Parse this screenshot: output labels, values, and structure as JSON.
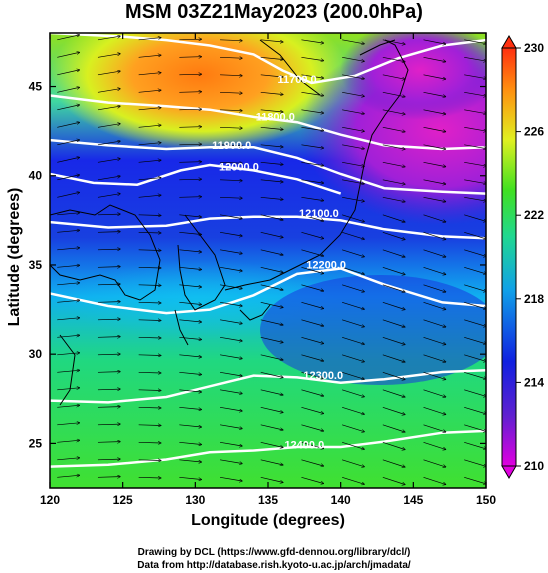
{
  "title": "MSM 03Z21May2023 (200.0hPa)",
  "xlabel": "Longitude (degrees)",
  "ylabel": "Latitude  (degrees)",
  "credits": [
    "Drawing by DCL (https://www.gfd-dennou.org/library/dcl/)",
    "Data from http://database.rish.kyoto-u.ac.jp/arch/jmadata/"
  ],
  "map": {
    "type": "contour-map",
    "lon_range": [
      120,
      150
    ],
    "lat_range": [
      22.5,
      48
    ],
    "x_ticks": [
      "120",
      "125",
      "130",
      "135",
      "140",
      "145",
      "150"
    ],
    "y_ticks": [
      "25",
      "30",
      "35",
      "40",
      "45"
    ],
    "shaded_field_range": [
      210,
      230
    ],
    "colorbar_ticks": [
      "210",
      "214",
      "218",
      "222",
      "226",
      "230"
    ],
    "colormap": [
      "#e000e0",
      "#6020d0",
      "#1020e0",
      "#10a0e8",
      "#20d890",
      "#40e020",
      "#e0f020",
      "#ff9010",
      "#ff3010"
    ],
    "contours": [
      {
        "label": "11700.0",
        "lon": 137.0,
        "lat": 45.2
      },
      {
        "label": "11800.0",
        "lon": 135.5,
        "lat": 43.1
      },
      {
        "label": "11900.0",
        "lon": 132.5,
        "lat": 41.5
      },
      {
        "label": "12000.0",
        "lon": 133.0,
        "lat": 40.3
      },
      {
        "label": "12100.0",
        "lon": 138.5,
        "lat": 37.7
      },
      {
        "label": "12200.0",
        "lon": 139.0,
        "lat": 34.8
      },
      {
        "label": "12300.0",
        "lon": 138.8,
        "lat": 28.6
      },
      {
        "label": "12400.0",
        "lon": 137.5,
        "lat": 24.7
      }
    ],
    "contour_lines": [
      [
        [
          120,
          48.0
        ],
        [
          125,
          47.8
        ],
        [
          128,
          47.6
        ],
        [
          131,
          47.3
        ],
        [
          134,
          46.8
        ],
        [
          136,
          45.9
        ],
        [
          138,
          45.2
        ],
        [
          141,
          45.6
        ],
        [
          144,
          46.6
        ],
        [
          147,
          47.3
        ],
        [
          150,
          47.6
        ]
      ],
      [
        [
          120,
          44.5
        ],
        [
          124,
          44.1
        ],
        [
          128,
          43.9
        ],
        [
          131,
          43.7
        ],
        [
          134,
          43.3
        ],
        [
          137,
          43.0
        ],
        [
          140,
          42.3
        ],
        [
          143,
          41.7
        ],
        [
          147,
          41.5
        ],
        [
          150,
          41.6
        ]
      ],
      [
        [
          120,
          42.0
        ],
        [
          124,
          41.7
        ],
        [
          128,
          41.5
        ],
        [
          131,
          41.6
        ],
        [
          134,
          41.6
        ],
        [
          137,
          41.0
        ],
        [
          140,
          40.1
        ],
        [
          143,
          39.3
        ],
        [
          147,
          39.1
        ],
        [
          150,
          39.0
        ]
      ],
      [
        [
          120,
          40.1
        ],
        [
          123,
          39.6
        ],
        [
          126,
          39.5
        ],
        [
          129,
          40.3
        ],
        [
          131,
          40.6
        ],
        [
          134,
          40.3
        ],
        [
          137,
          39.8
        ],
        [
          140,
          39.0
        ]
      ],
      [
        [
          120,
          37.4
        ],
        [
          124,
          37.1
        ],
        [
          128,
          37.2
        ],
        [
          131,
          37.6
        ],
        [
          134,
          37.7
        ],
        [
          137,
          37.7
        ],
        [
          140,
          37.5
        ],
        [
          143,
          37.0
        ],
        [
          147,
          36.6
        ],
        [
          150,
          36.5
        ]
      ],
      [
        [
          120,
          33.4
        ],
        [
          124,
          32.7
        ],
        [
          128,
          32.3
        ],
        [
          131,
          32.5
        ],
        [
          134,
          33.3
        ],
        [
          137,
          34.5
        ],
        [
          140,
          34.8
        ],
        [
          143,
          33.9
        ],
        [
          147,
          32.9
        ],
        [
          150,
          32.7
        ]
      ],
      [
        [
          120,
          27.4
        ],
        [
          124,
          27.3
        ],
        [
          128,
          27.6
        ],
        [
          131,
          28.2
        ],
        [
          134,
          28.8
        ],
        [
          137,
          28.7
        ],
        [
          140,
          28.4
        ],
        [
          143,
          28.6
        ],
        [
          147,
          29.0
        ],
        [
          150,
          29.1
        ]
      ],
      [
        [
          120,
          23.7
        ],
        [
          124,
          23.8
        ],
        [
          128,
          24.1
        ],
        [
          131,
          24.5
        ],
        [
          134,
          24.6
        ],
        [
          137,
          24.8
        ],
        [
          140,
          24.8
        ],
        [
          143,
          25.1
        ],
        [
          147,
          25.6
        ],
        [
          150,
          25.7
        ]
      ]
    ]
  }
}
